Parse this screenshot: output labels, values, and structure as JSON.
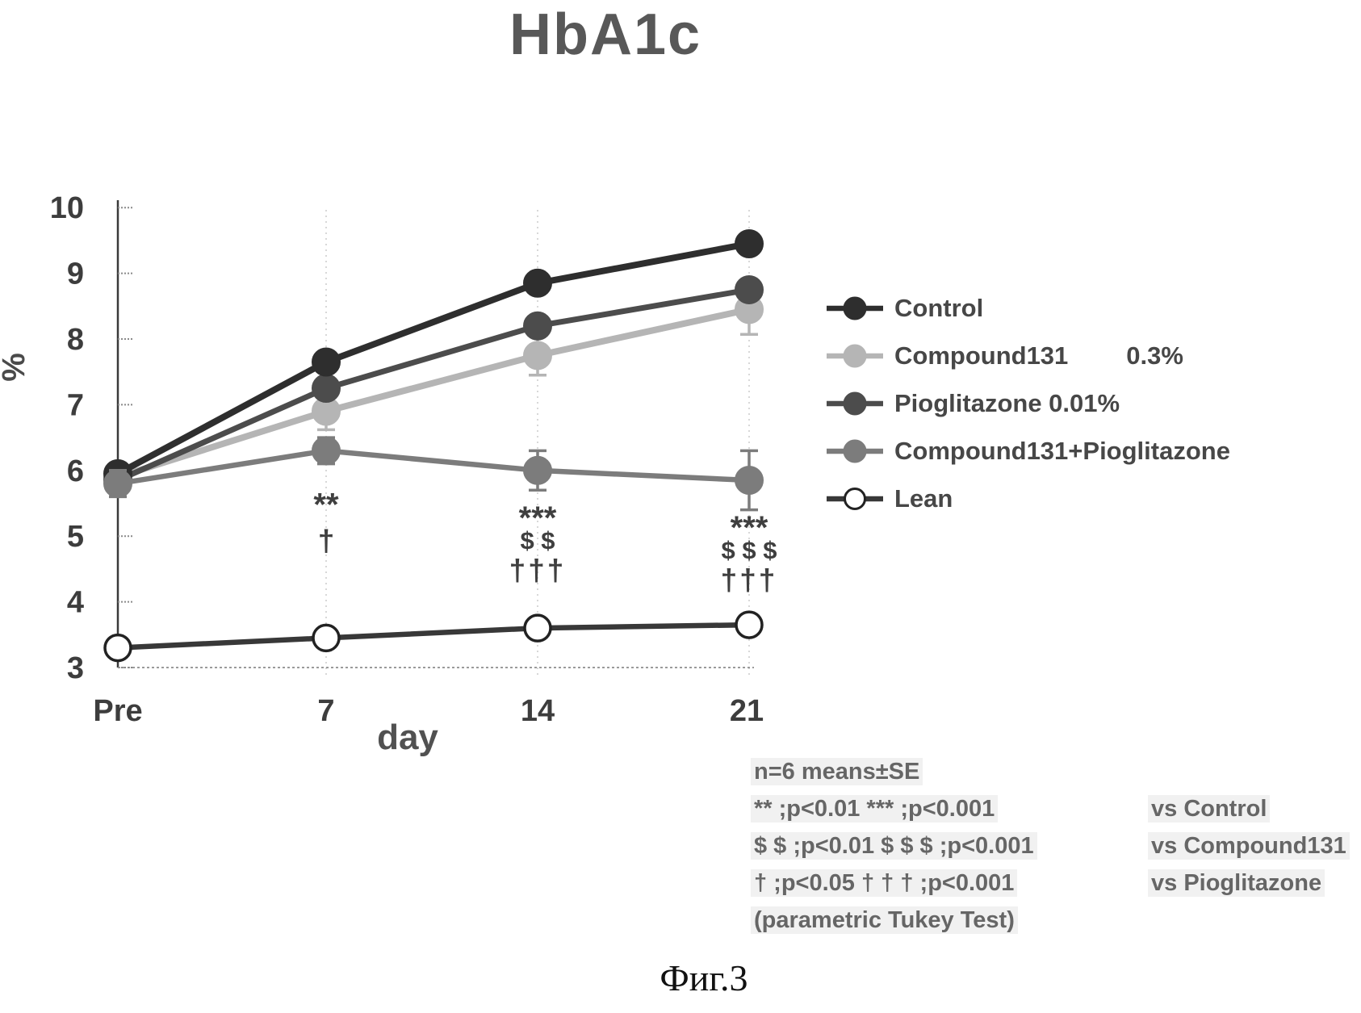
{
  "title": "HbA1c",
  "caption": "Фиг.3",
  "axes": {
    "y_label": "%",
    "x_label": "day",
    "y_ticks": [
      10,
      9,
      8,
      7,
      6,
      5,
      4,
      3
    ],
    "x_ticks": [
      "Pre",
      "7",
      "14",
      "21"
    ]
  },
  "legend": [
    {
      "label": "Control",
      "suffix": "",
      "color": "#2e2e2e",
      "marker": "filled"
    },
    {
      "label": "Compound131",
      "suffix": "0.3%",
      "color": "#b5b5b5",
      "marker": "filled"
    },
    {
      "label": "Pioglitazone 0.01%",
      "suffix": "",
      "color": "#4c4c4c",
      "marker": "filled"
    },
    {
      "label": "Compound131+Pioglitazone",
      "suffix": "",
      "color": "#7c7c7c",
      "marker": "filled"
    },
    {
      "label": "Lean",
      "suffix": "",
      "color": "#383838",
      "marker": "open"
    }
  ],
  "chart_data": {
    "type": "line",
    "title": "HbA1c",
    "x": [
      "Pre",
      "7",
      "14",
      "21"
    ],
    "xlabel": "day",
    "ylabel": "%",
    "ylim": [
      3,
      10
    ],
    "grid": "dotted vertical at day 7, 14, 21; dotted baseline at y=3",
    "legend_position": "right",
    "series": [
      {
        "name": "Control",
        "values": [
          5.95,
          7.65,
          8.85,
          9.45
        ],
        "se": [
          0,
          0,
          0,
          0
        ],
        "color": "#2e2e2e",
        "marker": "filled",
        "line_width": 8
      },
      {
        "name": "Compound131 0.3%",
        "values": [
          5.9,
          6.9,
          7.75,
          8.45
        ],
        "se": [
          0,
          0.28,
          0.3,
          0.38
        ],
        "color": "#b5b5b5",
        "marker": "filled",
        "line_width": 8
      },
      {
        "name": "Pioglitazone 0.01%",
        "values": [
          5.85,
          7.25,
          8.2,
          8.75
        ],
        "se": [
          0,
          0,
          0,
          0
        ],
        "color": "#4c4c4c",
        "marker": "filled",
        "line_width": 7
      },
      {
        "name": "Compound131+Pioglitazone",
        "values": [
          5.8,
          6.3,
          6.0,
          5.85
        ],
        "se": [
          0.2,
          0.2,
          0.3,
          0.45
        ],
        "color": "#7c7c7c",
        "marker": "filled",
        "line_width": 6.5
      },
      {
        "name": "Lean",
        "values": [
          3.3,
          3.45,
          3.6,
          3.65
        ],
        "se": [
          0,
          0,
          0,
          0
        ],
        "color": "#383838",
        "marker": "open",
        "line_width": 6.5
      }
    ],
    "significance": [
      {
        "x": "7",
        "marks": [
          "**",
          "†"
        ]
      },
      {
        "x": "14",
        "marks": [
          "***",
          "$ $",
          "†††"
        ]
      },
      {
        "x": "21",
        "marks": [
          "***",
          "$ $ $",
          "†††"
        ]
      }
    ]
  },
  "notes": {
    "line1": "n=6 means±SE",
    "rows": [
      {
        "left": "** ;p<0.01   ***  ;p<0.001",
        "right": "vs  Control"
      },
      {
        "left": "$ $ ;p<0.01  $ $ $ ;p<0.001",
        "right": "vs Compound131"
      },
      {
        "left": "† ;p<0.05   † † † ;p<0.001",
        "right": "vs  Pioglitazone"
      }
    ],
    "footer": "(parametric Tukey Test)"
  }
}
